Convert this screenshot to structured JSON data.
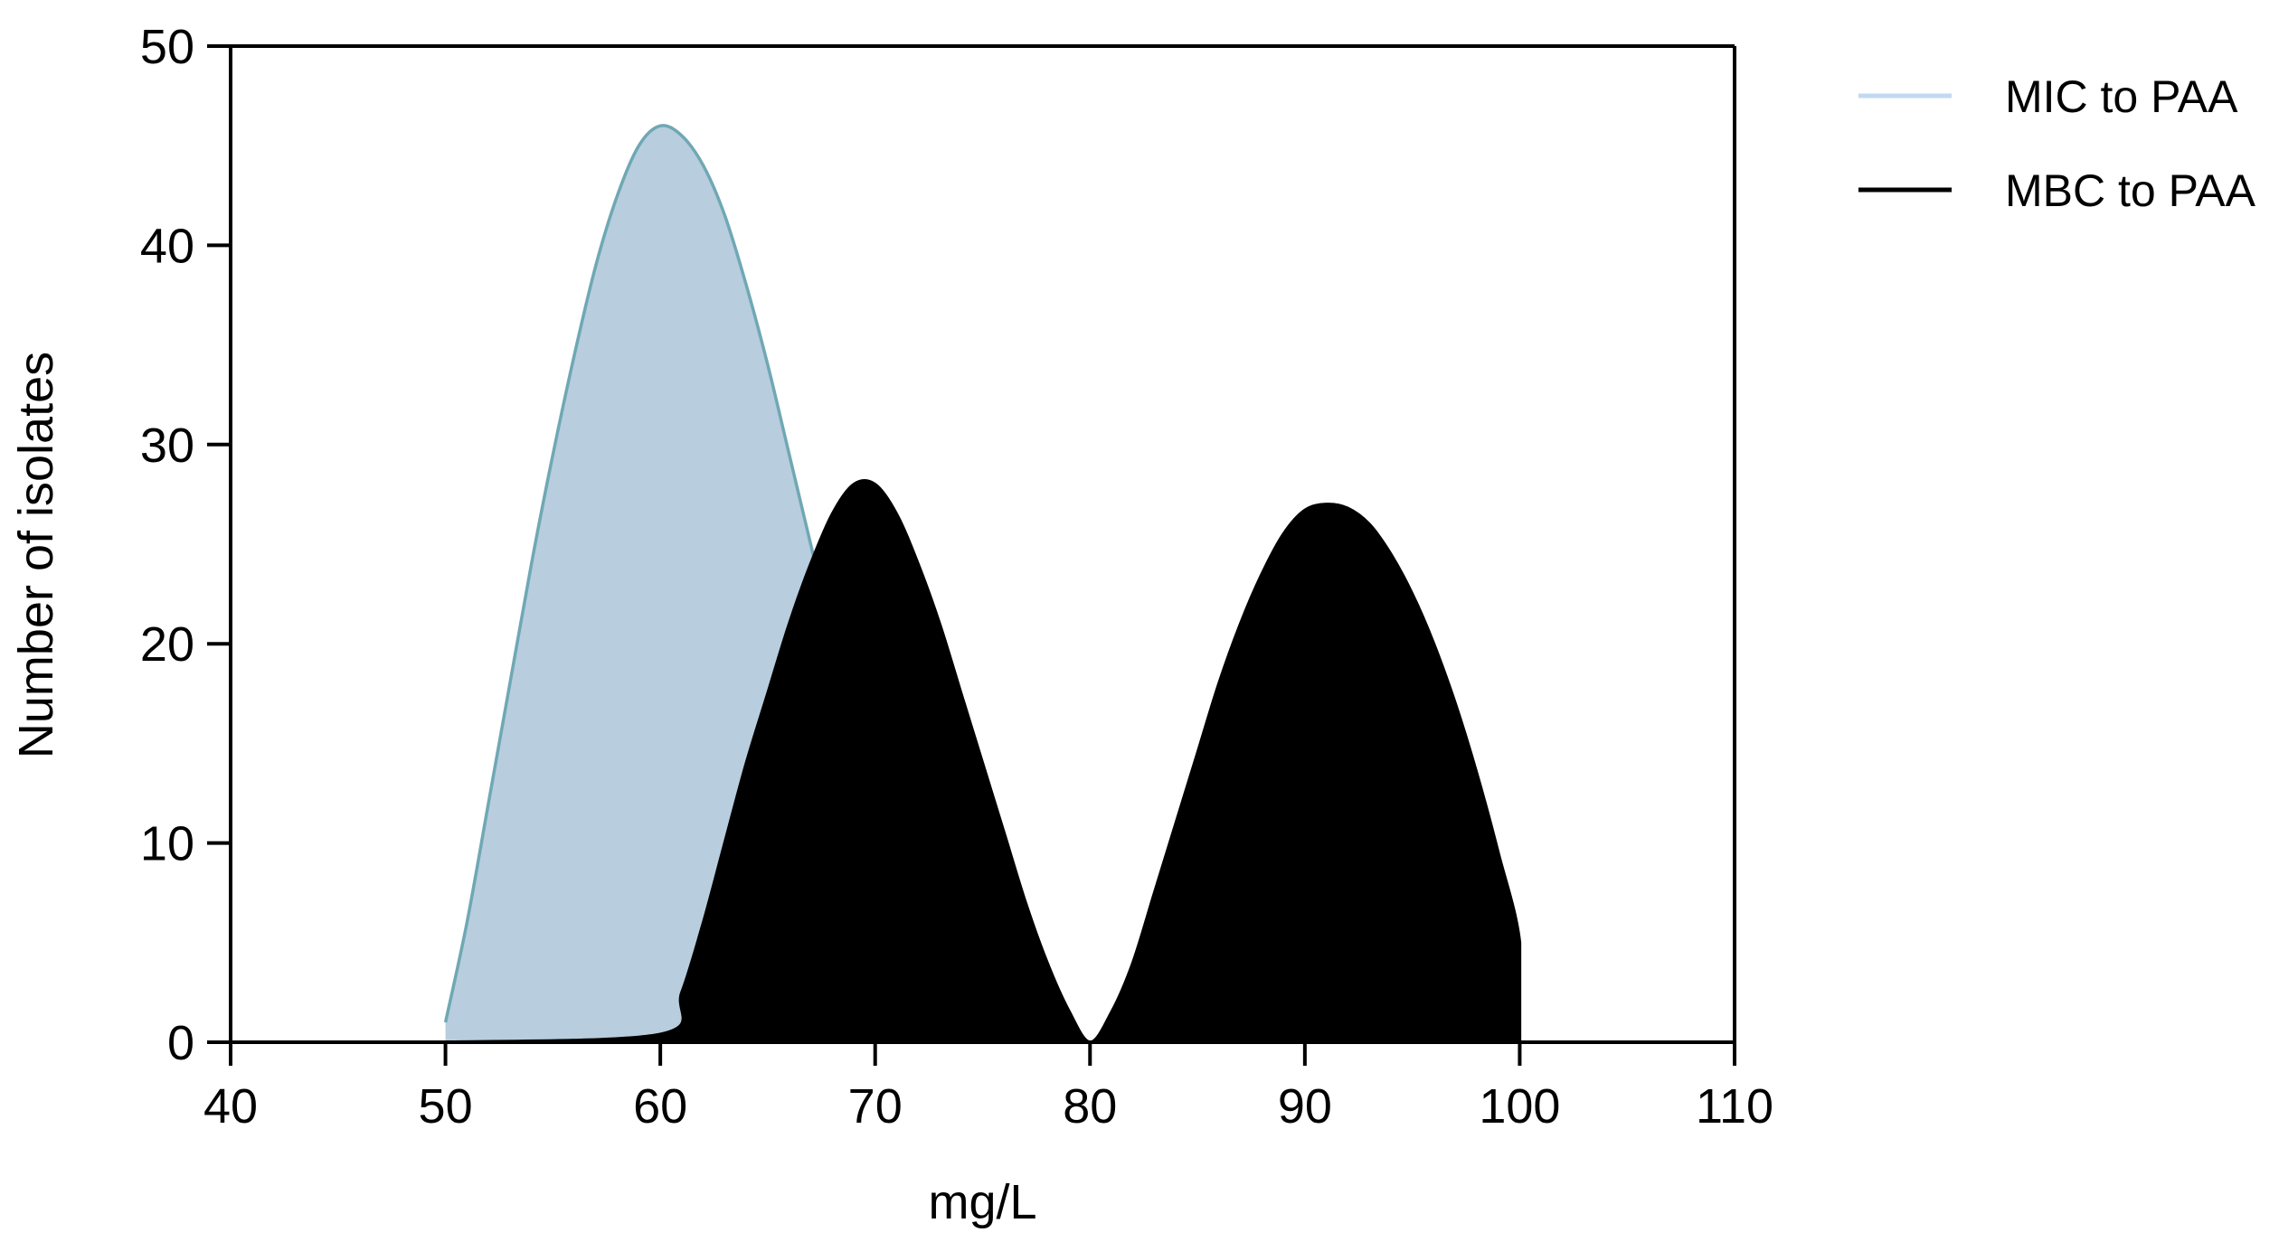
{
  "chart_data": {
    "type": "area",
    "title": "",
    "xlabel": "mg/L",
    "ylabel": "Number of isolates",
    "xlim": [
      40,
      110
    ],
    "ylim": [
      0,
      50
    ],
    "xticks": [
      40,
      50,
      60,
      70,
      80,
      90,
      100,
      110
    ],
    "yticks": [
      0,
      10,
      20,
      30,
      40,
      50
    ],
    "grid": false,
    "legend_position": "top-right, outside plot",
    "series": [
      {
        "name": "MIC to PAA",
        "fill_color": "#b8cddd",
        "line_color": "#6fa8b4",
        "legend_color": "#c2d9f2",
        "points": [
          [
            50,
            1
          ],
          [
            51,
            6
          ],
          [
            52,
            12
          ],
          [
            53,
            18
          ],
          [
            54,
            24
          ],
          [
            55,
            29.5
          ],
          [
            56,
            34.5
          ],
          [
            57,
            39
          ],
          [
            58,
            42.5
          ],
          [
            59,
            45
          ],
          [
            60,
            46
          ],
          [
            61,
            45.5
          ],
          [
            62,
            44
          ],
          [
            63,
            41.5
          ],
          [
            64,
            38
          ],
          [
            65,
            34
          ],
          [
            66,
            29.5
          ],
          [
            67,
            25
          ],
          [
            68,
            20.5
          ],
          [
            69,
            16.5
          ],
          [
            70,
            12.5
          ],
          [
            71,
            9.5
          ],
          [
            72,
            7
          ],
          [
            73,
            5
          ],
          [
            74,
            3.4
          ],
          [
            75,
            2.3
          ],
          [
            76,
            1.4
          ],
          [
            77,
            0.8
          ],
          [
            78,
            0.4
          ],
          [
            79,
            0.2
          ],
          [
            80,
            0
          ],
          [
            89,
            0
          ],
          [
            100,
            0
          ]
        ]
      },
      {
        "name": "MBC to PAA",
        "fill_color": "#000000",
        "line_color": "#000000",
        "legend_color": "#000000",
        "points": [
          [
            50,
            0
          ],
          [
            60,
            0.4
          ],
          [
            61,
            2.5
          ],
          [
            62,
            6
          ],
          [
            63,
            10
          ],
          [
            64,
            14
          ],
          [
            65,
            17.5
          ],
          [
            66,
            21
          ],
          [
            67,
            24
          ],
          [
            68,
            26.5
          ],
          [
            69,
            28
          ],
          [
            70,
            28
          ],
          [
            71,
            26.5
          ],
          [
            72,
            24
          ],
          [
            73,
            21
          ],
          [
            74,
            17.5
          ],
          [
            75,
            14
          ],
          [
            76,
            10.5
          ],
          [
            77,
            7
          ],
          [
            78,
            4
          ],
          [
            79,
            1.6
          ],
          [
            80,
            0
          ],
          [
            81,
            1.5
          ],
          [
            82,
            4
          ],
          [
            83,
            7.5
          ],
          [
            84,
            11
          ],
          [
            85,
            14.5
          ],
          [
            86,
            18
          ],
          [
            87,
            21
          ],
          [
            88,
            23.5
          ],
          [
            89,
            25.5
          ],
          [
            90,
            26.7
          ],
          [
            91,
            27
          ],
          [
            92,
            26.8
          ],
          [
            93,
            26
          ],
          [
            94,
            24.5
          ],
          [
            95,
            22.5
          ],
          [
            96,
            20
          ],
          [
            97,
            17
          ],
          [
            98,
            13.5
          ],
          [
            99,
            9.5
          ],
          [
            100,
            5
          ],
          [
            100,
            0
          ]
        ]
      }
    ]
  }
}
